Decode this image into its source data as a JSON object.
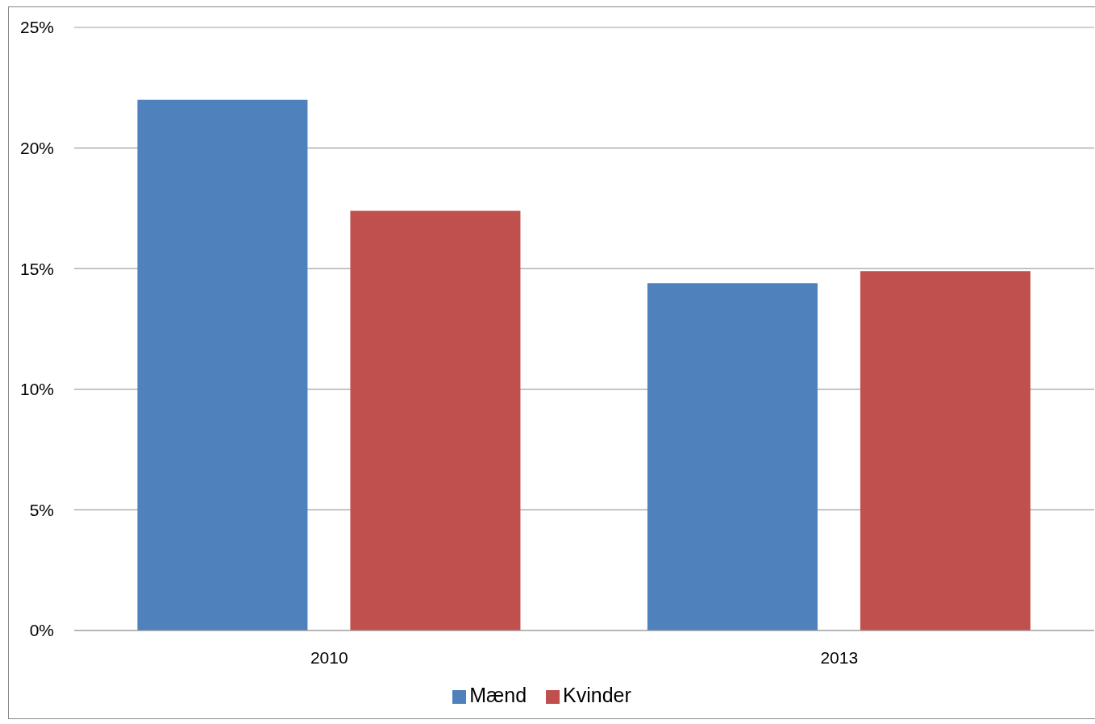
{
  "chart_data": {
    "type": "bar",
    "categories": [
      "2010",
      "2013"
    ],
    "series": [
      {
        "name": "Mænd",
        "color": "#4f81bd",
        "values": [
          22.0,
          14.4
        ]
      },
      {
        "name": "Kvinder",
        "color": "#c0504d",
        "values": [
          17.4,
          14.9
        ]
      }
    ],
    "ylim": [
      0,
      25
    ],
    "yticks": [
      {
        "value": 0,
        "label": "0%"
      },
      {
        "value": 5,
        "label": "5%"
      },
      {
        "value": 10,
        "label": "10%"
      },
      {
        "value": 15,
        "label": "15%"
      },
      {
        "value": 20,
        "label": "20%"
      },
      {
        "value": 25,
        "label": "25%"
      }
    ],
    "grid": "y",
    "legend": "bottom"
  }
}
